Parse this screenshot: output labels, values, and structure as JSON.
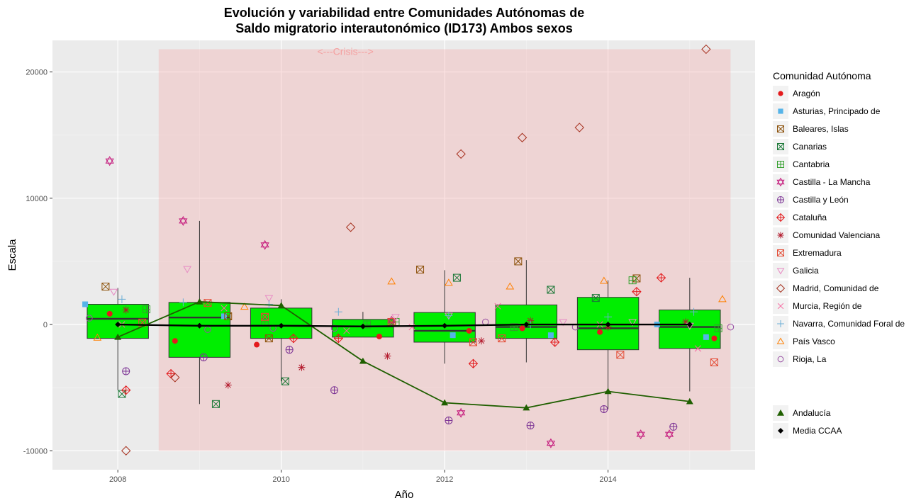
{
  "chart_data": {
    "type": "box",
    "title_lines": [
      "Evolución y variabilidad entre Comunidades Autónomas de",
      "Saldo migratorio interautonómico (ID173) Ambos sexos"
    ],
    "xlabel": "Año",
    "ylabel": "Escala",
    "xlim": [
      2007.2,
      2015.8
    ],
    "ylim": [
      -11500,
      22500
    ],
    "x_ticks": [
      2008,
      2010,
      2012,
      2014
    ],
    "y_ticks": [
      -10000,
      0,
      10000,
      20000
    ],
    "grid": true,
    "legend_title": "Comunidad Autónoma",
    "legend_position": "right",
    "crisis": {
      "label": "<---Crisis--->",
      "x_range": [
        2008.5,
        2015.5
      ],
      "y_range": [
        -10000,
        21800
      ],
      "color": "#f4a0a0"
    },
    "boxes": [
      {
        "year": 2008,
        "min": -5200,
        "q1": -1100,
        "median": 450,
        "q3": 1600,
        "max": 2900,
        "mean": 0
      },
      {
        "year": 2009,
        "min": -6300,
        "q1": -2600,
        "median": 550,
        "q3": 1750,
        "max": 8200,
        "mean": -100
      },
      {
        "year": 2010,
        "min": -4500,
        "q1": -1100,
        "median": -100,
        "q3": 1300,
        "max": 2000,
        "mean": -100
      },
      {
        "year": 2011,
        "min": -1000,
        "q1": -1000,
        "median": -150,
        "q3": 400,
        "max": 1000,
        "mean": -150
      },
      {
        "year": 2012,
        "min": -3100,
        "q1": -1400,
        "median": -500,
        "q3": 950,
        "max": 4300,
        "mean": -100
      },
      {
        "year": 2013,
        "min": -3000,
        "q1": -1100,
        "median": -200,
        "q3": 1550,
        "max": 5100,
        "mean": 0
      },
      {
        "year": 2014,
        "min": -6700,
        "q1": -2000,
        "median": -300,
        "q3": 2150,
        "max": 3500,
        "mean": 0
      },
      {
        "year": 2015,
        "min": -5300,
        "q1": -1900,
        "median": -200,
        "q3": 1150,
        "max": 3700,
        "mean": 0
      }
    ],
    "highlight_series": [
      {
        "name": "Andalucía",
        "color": "#1f5f00",
        "x": [
          2008,
          2009,
          2010,
          2011,
          2012,
          2013,
          2014,
          2015
        ],
        "y": [
          -1000,
          1800,
          1500,
          -2900,
          -6200,
          -6600,
          -5300,
          -6100
        ]
      },
      {
        "name": "Media CCAA",
        "color": "#000000",
        "x": [
          2008,
          2009,
          2010,
          2011,
          2012,
          2013,
          2014,
          2015
        ],
        "y": [
          0,
          -100,
          -100,
          -150,
          -100,
          0,
          0,
          0
        ]
      }
    ],
    "series": [
      {
        "name": "Aragón",
        "color": "#e41a1c",
        "shape": "circle-filled",
        "x": [
          2007.9,
          2008.7,
          2009.7,
          2011.2,
          2012.3,
          2012.95,
          2013.9,
          2015.3
        ],
        "y": [
          850,
          -1300,
          -1600,
          -950,
          -500,
          -300,
          -600,
          -1100
        ]
      },
      {
        "name": "Asturias, Principado de",
        "color": "#56b4e9",
        "shape": "square-filled",
        "x": [
          2007.6,
          2009.3,
          2012.1,
          2013.3,
          2014.6,
          2015.2
        ],
        "y": [
          1600,
          650,
          -850,
          -850,
          0,
          -1000
        ]
      },
      {
        "name": "Baleares, Islas",
        "color": "#8c510a",
        "shape": "square-x",
        "x": [
          2007.85,
          2009.35,
          2009.85,
          2011.7,
          2012.9,
          2014.35
        ],
        "y": [
          3000,
          650,
          -1100,
          4350,
          5000,
          3650
        ]
      },
      {
        "name": "Canarias",
        "color": "#1b7837",
        "shape": "square-cross",
        "x": [
          2008.05,
          2009.2,
          2010.05,
          2012.15,
          2013.3,
          2013.85
        ],
        "y": [
          -5500,
          -6300,
          -4500,
          3700,
          2750,
          2100
        ]
      },
      {
        "name": "Cantabria",
        "color": "#33a02c",
        "shape": "square-plus",
        "x": [
          2008.35,
          2009.8,
          2011.05,
          2011.4,
          2012.85,
          2014.3,
          2015.35
        ],
        "y": [
          1200,
          200,
          0,
          200,
          -200,
          3500,
          -300
        ]
      },
      {
        "name": "Castilla - La Mancha",
        "color": "#c51b7d",
        "shape": "star",
        "x": [
          2007.9,
          2008.8,
          2009.8,
          2011.35,
          2012.2,
          2013.3,
          2014.4,
          2014.75
        ],
        "y": [
          12950,
          8200,
          6300,
          300,
          -7000,
          -9400,
          -8700,
          -8700
        ]
      },
      {
        "name": "Castilla y León",
        "color": "#7b3294",
        "shape": "circle-plus",
        "x": [
          2008.1,
          2009.05,
          2010.1,
          2010.65,
          2012.05,
          2013.05,
          2013.95,
          2014.8
        ],
        "y": [
          -3700,
          -2600,
          -2000,
          -5200,
          -7600,
          -8000,
          -6700,
          -8100
        ]
      },
      {
        "name": "Cataluña",
        "color": "#e31a1c",
        "shape": "diamond-plus",
        "x": [
          2008.1,
          2008.65,
          2010.15,
          2010.7,
          2012.35,
          2013.35,
          2014.35,
          2014.65
        ],
        "y": [
          -5200,
          -3900,
          -1100,
          -1100,
          -3100,
          -1400,
          2600,
          3700
        ]
      },
      {
        "name": "Comunidad Valenciana",
        "color": "#b2182b",
        "shape": "asterisk",
        "x": [
          2008.1,
          2009.35,
          2010.25,
          2011.3,
          2012.45,
          2013.05,
          2014.0,
          2014.95
        ],
        "y": [
          1150,
          -4800,
          -3400,
          -2500,
          -1300,
          300,
          -200,
          200
        ]
      },
      {
        "name": "Extremadura",
        "color": "#e34a33",
        "shape": "square-x",
        "x": [
          2008.3,
          2009.1,
          2009.8,
          2011.35,
          2012.35,
          2012.7,
          2014.15,
          2015.3
        ],
        "y": [
          150,
          1700,
          600,
          200,
          -1400,
          -1100,
          -2400,
          -3000
        ]
      },
      {
        "name": "Galicia",
        "color": "#e78ac3",
        "shape": "triangle-down",
        "x": [
          2007.95,
          2008.85,
          2009.85,
          2011.4,
          2012.05,
          2013.45,
          2014.3,
          2015.0
        ],
        "y": [
          2600,
          4400,
          2100,
          600,
          700,
          200,
          200,
          -100
        ]
      },
      {
        "name": "Madrid, Comunidad de",
        "color": "#a6311f",
        "shape": "diamond",
        "x": [
          2008.1,
          2008.7,
          2010.85,
          2012.2,
          2012.95,
          2013.65,
          2015.2
        ],
        "y": [
          -10000,
          -4200,
          7700,
          13500,
          14800,
          15600,
          21800
        ]
      },
      {
        "name": "Murcia, Región de",
        "color": "#f768a1",
        "shape": "x",
        "x": [
          2008.05,
          2009.3,
          2010.8,
          2011.6,
          2012.65,
          2013.9,
          2015.1
        ],
        "y": [
          0,
          1300,
          -500,
          -200,
          1450,
          0,
          -1900
        ]
      },
      {
        "name": "Navarra, Comunidad Foral de",
        "color": "#6baed6",
        "shape": "plus",
        "x": [
          2008.05,
          2008.8,
          2009.85,
          2010.7,
          2012.05,
          2013.05,
          2014.0,
          2015.05
        ],
        "y": [
          2000,
          1750,
          1600,
          1000,
          700,
          0,
          600,
          1000
        ]
      },
      {
        "name": "País Vasco",
        "color": "#ff7f00",
        "shape": "triangle",
        "x": [
          2007.75,
          2009.55,
          2011.35,
          2012.05,
          2012.8,
          2013.95,
          2015.4
        ],
        "y": [
          -1050,
          1400,
          3400,
          3300,
          3000,
          3450,
          2000
        ]
      },
      {
        "name": "Rioja, La",
        "color": "#984ea3",
        "shape": "circle",
        "x": [
          2007.65,
          2009.1,
          2009.9,
          2010.65,
          2012.5,
          2013.6,
          2015.5
        ],
        "y": [
          500,
          -400,
          -300,
          -300,
          200,
          -200,
          -200
        ]
      }
    ],
    "secondary_legend": [
      "Andalucía",
      "Media CCAA"
    ]
  }
}
